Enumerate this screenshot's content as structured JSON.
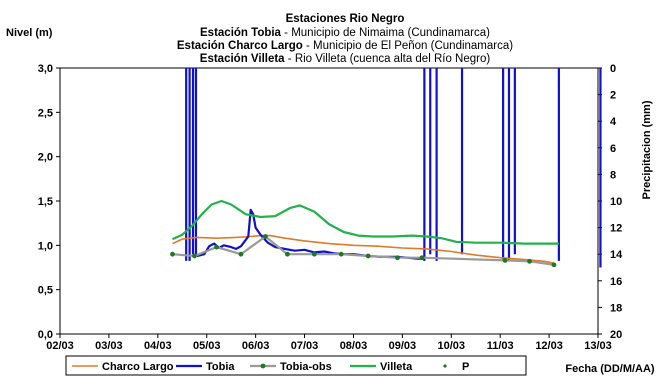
{
  "chart_data": {
    "type": "line",
    "title": "Estaciones Rio Negro",
    "subtitle_lines": [
      {
        "station": "Estación Tobia",
        "sep": " - ",
        "detail": "Municipio de Nimaima (Cundinamarca)"
      },
      {
        "station": "Estación Charco Largo",
        "sep": " - ",
        "detail": "Municipio de El Peñon (Cundinamarca)"
      },
      {
        "station": "Estación Villeta",
        "sep": " -  ",
        "detail": "Rio Villeta (cuenca alta del Río Negro)"
      }
    ],
    "ylabel": "Nivel (m)",
    "y2label": "Precipitacion (mm)",
    "xlabel": "Fecha (DD/M/AA)",
    "ylim": [
      0,
      3
    ],
    "y2lim": [
      0,
      20
    ],
    "y2_inverted": true,
    "xlim": [
      0,
      11
    ],
    "x_tick_labels": [
      "02/03",
      "03/03",
      "04/03",
      "05/03",
      "06/03",
      "07/03",
      "08/03",
      "09/03",
      "10/03",
      "11/03",
      "12/03",
      "13/03"
    ],
    "y_tick_labels": [
      "0,0",
      "0,5",
      "1,0",
      "1,5",
      "2,0",
      "2,5",
      "3,0"
    ],
    "y2_tick_labels": [
      "0",
      "2",
      "4",
      "6",
      "8",
      "10",
      "12",
      "14",
      "16",
      "18",
      "20"
    ],
    "grid": "none",
    "legend": {
      "position": "bottom",
      "entries": [
        "Charco Largo",
        "Tobia",
        "Tobia-obs",
        "Villeta",
        "P"
      ]
    },
    "series": [
      {
        "name": "Charco Largo",
        "color": "#E07A28",
        "points": [
          [
            2.3,
            1.02
          ],
          [
            2.5,
            1.07
          ],
          [
            2.8,
            1.09
          ],
          [
            3.2,
            1.08
          ],
          [
            3.6,
            1.09
          ],
          [
            3.9,
            1.1
          ],
          [
            4.1,
            1.11
          ],
          [
            4.3,
            1.11
          ],
          [
            4.6,
            1.08
          ],
          [
            5.0,
            1.05
          ],
          [
            5.5,
            1.02
          ],
          [
            6.0,
            1.0
          ],
          [
            6.5,
            0.99
          ],
          [
            7.0,
            0.97
          ],
          [
            7.5,
            0.96
          ],
          [
            8.0,
            0.93
          ],
          [
            8.5,
            0.89
          ],
          [
            9.0,
            0.86
          ],
          [
            9.5,
            0.84
          ],
          [
            9.9,
            0.82
          ],
          [
            10.1,
            0.8
          ]
        ]
      },
      {
        "name": "Tobia",
        "color": "#1010D0",
        "points": [
          [
            2.8,
            0.88
          ],
          [
            2.95,
            0.9
          ],
          [
            3.05,
            0.99
          ],
          [
            3.15,
            1.02
          ],
          [
            3.25,
            0.97
          ],
          [
            3.35,
            1.0
          ],
          [
            3.5,
            0.98
          ],
          [
            3.6,
            0.96
          ],
          [
            3.7,
            0.99
          ],
          [
            3.85,
            1.1
          ],
          [
            3.9,
            1.4
          ],
          [
            3.95,
            1.35
          ],
          [
            4.0,
            1.2
          ],
          [
            4.1,
            1.12
          ],
          [
            4.25,
            1.03
          ],
          [
            4.4,
            0.98
          ],
          [
            4.6,
            0.96
          ],
          [
            4.8,
            0.94
          ],
          [
            5.0,
            0.95
          ],
          [
            5.2,
            0.92
          ],
          [
            5.4,
            0.93
          ],
          [
            5.6,
            0.91
          ],
          [
            5.8,
            0.9
          ],
          [
            6.0,
            0.9
          ],
          [
            6.3,
            0.88
          ],
          [
            6.6,
            0.87
          ],
          [
            6.9,
            0.87
          ],
          [
            7.1,
            0.86
          ],
          [
            7.3,
            0.85
          ],
          [
            7.45,
            0.85
          ]
        ]
      },
      {
        "name": "Tobia-obs",
        "color": "#9A9A9A",
        "marker_color": "#1E7A1E",
        "points": [
          [
            2.3,
            0.9
          ],
          [
            2.75,
            0.88
          ],
          [
            3.2,
            0.98
          ],
          [
            3.7,
            0.9
          ],
          [
            4.2,
            1.1
          ],
          [
            4.65,
            0.9
          ],
          [
            5.2,
            0.9
          ],
          [
            5.75,
            0.9
          ],
          [
            6.3,
            0.88
          ],
          [
            6.9,
            0.86
          ],
          [
            7.4,
            0.86
          ],
          [
            9.1,
            0.83
          ],
          [
            9.6,
            0.82
          ],
          [
            10.1,
            0.78
          ]
        ]
      },
      {
        "name": "Villeta",
        "color": "#22B24C",
        "points": [
          [
            2.3,
            1.07
          ],
          [
            2.5,
            1.12
          ],
          [
            2.7,
            1.22
          ],
          [
            2.9,
            1.35
          ],
          [
            3.1,
            1.46
          ],
          [
            3.3,
            1.5
          ],
          [
            3.5,
            1.46
          ],
          [
            3.8,
            1.35
          ],
          [
            4.1,
            1.32
          ],
          [
            4.4,
            1.33
          ],
          [
            4.7,
            1.42
          ],
          [
            4.9,
            1.45
          ],
          [
            5.2,
            1.38
          ],
          [
            5.5,
            1.24
          ],
          [
            5.8,
            1.15
          ],
          [
            6.1,
            1.11
          ],
          [
            6.4,
            1.1
          ],
          [
            6.8,
            1.1
          ],
          [
            7.2,
            1.11
          ],
          [
            7.5,
            1.1
          ],
          [
            7.8,
            1.08
          ],
          [
            8.1,
            1.04
          ],
          [
            8.5,
            1.03
          ],
          [
            9.0,
            1.03
          ],
          [
            9.5,
            1.02
          ],
          [
            10.0,
            1.02
          ],
          [
            10.2,
            1.02
          ]
        ]
      }
    ],
    "precipitation": {
      "name": "P",
      "color": "#1010D0",
      "bars": [
        {
          "x": 2.58,
          "mm": 14.5
        },
        {
          "x": 2.65,
          "mm": 14.5
        },
        {
          "x": 2.72,
          "mm": 14.0
        },
        {
          "x": 2.78,
          "mm": 14.0
        },
        {
          "x": 7.45,
          "mm": 14.5
        },
        {
          "x": 7.57,
          "mm": 14.0
        },
        {
          "x": 7.7,
          "mm": 14.5
        },
        {
          "x": 8.22,
          "mm": 14.0
        },
        {
          "x": 9.06,
          "mm": 14.5
        },
        {
          "x": 9.18,
          "mm": 14.5
        },
        {
          "x": 9.3,
          "mm": 14.0
        },
        {
          "x": 10.2,
          "mm": 14.5
        },
        {
          "x": 11.05,
          "mm": 15.0
        }
      ]
    }
  }
}
